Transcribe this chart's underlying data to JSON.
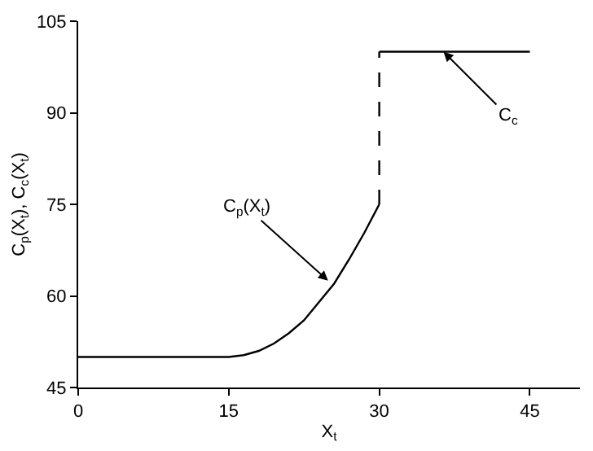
{
  "chart_data": {
    "type": "line",
    "xlabel": "X$_{t}$",
    "ylabel": "C$_{p}$(X$_{t}$), C$_{c}$(X$_{t}$)",
    "xlim": [
      0,
      50
    ],
    "xticks": [
      0,
      15,
      30,
      45
    ],
    "ylim": [
      45,
      105
    ],
    "yticks": [
      45,
      60,
      75,
      90,
      105
    ],
    "series": [
      {
        "color": "#000000",
        "x": [
          0,
          15,
          16.5,
          18,
          19.5,
          21,
          22.5,
          24,
          25.5,
          27,
          28.5,
          30
        ],
        "values": [
          50,
          50,
          50.3,
          51,
          52.2,
          53.9,
          56,
          59,
          62,
          66,
          70.3,
          75
        ]
      },
      {
        "color": "#000000",
        "line_style": "dashed",
        "x": [
          30,
          30
        ],
        "values": [
          75,
          100
        ]
      },
      {
        "color": "#000000",
        "x": [
          30,
          45
        ],
        "values": [
          100,
          100
        ]
      }
    ],
    "annotations": [
      {
        "text": "C$_{p}$(X$_{t}$)",
        "x": 24.9,
        "y": 62.5
      },
      {
        "text": "C$_{c}$",
        "x": 36.4,
        "y": 100
      }
    ]
  }
}
